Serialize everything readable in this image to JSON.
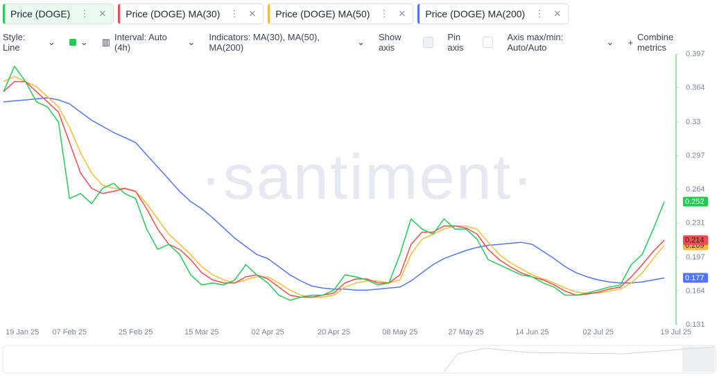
{
  "tabs": [
    "Price (DOGE)",
    "Price (DOGE) MA(30)",
    "Price (DOGE) MA(50)",
    "Price (DOGE) MA(200)"
  ],
  "toolbar": {
    "style": "Style: Line",
    "interval": "Interval: Auto (4h)",
    "indicators": "Indicators: MA(30), MA(50), MA(200)",
    "show_axis": "Show axis",
    "pin_axis": "Pin axis",
    "axis_minmax": "Axis max/min: Auto/Auto",
    "combine": "Combine metrics"
  },
  "watermark": "·santiment·",
  "chart_data": {
    "type": "line",
    "categories": [
      "19 Jan 25",
      null,
      null,
      null,
      null,
      null,
      "07 Feb 25",
      null,
      null,
      null,
      null,
      null,
      "25 Feb 25",
      null,
      null,
      null,
      null,
      null,
      "15 Mar 25",
      null,
      null,
      null,
      null,
      null,
      "02 Apr 25",
      null,
      null,
      null,
      null,
      null,
      "20 Apr 25",
      null,
      null,
      null,
      null,
      null,
      "08 May 25",
      null,
      null,
      null,
      null,
      null,
      "27 May 25",
      null,
      null,
      null,
      null,
      null,
      "14 Jun 25",
      null,
      null,
      null,
      null,
      null,
      "02 Jul 25",
      null,
      null,
      null,
      null,
      null,
      "19 Jul 25"
    ],
    "series": [
      {
        "name": "Price (DOGE)",
        "color": "#26c953",
        "values": [
          0.36,
          0.385,
          0.37,
          0.35,
          0.345,
          0.33,
          0.255,
          0.26,
          0.25,
          0.265,
          0.27,
          0.26,
          0.255,
          0.225,
          0.205,
          0.21,
          0.2,
          0.18,
          0.17,
          0.172,
          0.17,
          0.175,
          0.19,
          0.18,
          0.172,
          0.16,
          0.155,
          0.158,
          0.16,
          0.16,
          0.165,
          0.18,
          0.178,
          0.175,
          0.17,
          0.172,
          0.2,
          0.235,
          0.225,
          0.22,
          0.235,
          0.225,
          0.225,
          0.215,
          0.195,
          0.19,
          0.185,
          0.18,
          0.178,
          0.172,
          0.168,
          0.16,
          0.16,
          0.162,
          0.165,
          0.168,
          0.17,
          0.19,
          0.2,
          0.225,
          0.252
        ]
      },
      {
        "name": "Price (DOGE) MA(30)",
        "color": "#f24c4c",
        "values": [
          0.36,
          0.37,
          0.37,
          0.36,
          0.35,
          0.34,
          0.31,
          0.28,
          0.265,
          0.26,
          0.262,
          0.265,
          0.262,
          0.245,
          0.225,
          0.21,
          0.205,
          0.195,
          0.182,
          0.175,
          0.172,
          0.172,
          0.178,
          0.18,
          0.176,
          0.168,
          0.16,
          0.158,
          0.158,
          0.16,
          0.162,
          0.172,
          0.176,
          0.176,
          0.172,
          0.172,
          0.18,
          0.21,
          0.222,
          0.222,
          0.228,
          0.228,
          0.226,
          0.22,
          0.205,
          0.195,
          0.188,
          0.182,
          0.178,
          0.175,
          0.17,
          0.164,
          0.16,
          0.161,
          0.163,
          0.166,
          0.168,
          0.178,
          0.19,
          0.203,
          0.214
        ]
      },
      {
        "name": "Price (DOGE) MA(50)",
        "color": "#f9bc3a",
        "values": [
          0.37,
          0.375,
          0.37,
          0.365,
          0.355,
          0.345,
          0.325,
          0.3,
          0.28,
          0.268,
          0.265,
          0.265,
          0.262,
          0.25,
          0.235,
          0.22,
          0.21,
          0.2,
          0.188,
          0.18,
          0.175,
          0.172,
          0.175,
          0.178,
          0.178,
          0.172,
          0.165,
          0.16,
          0.158,
          0.158,
          0.16,
          0.168,
          0.172,
          0.174,
          0.174,
          0.172,
          0.175,
          0.2,
          0.215,
          0.22,
          0.225,
          0.228,
          0.228,
          0.225,
          0.212,
          0.2,
          0.192,
          0.186,
          0.18,
          0.176,
          0.172,
          0.167,
          0.163,
          0.162,
          0.162,
          0.164,
          0.166,
          0.172,
          0.182,
          0.196,
          0.209
        ]
      },
      {
        "name": "Price (DOGE) MA(200)",
        "color": "#5275ff",
        "values": [
          0.35,
          0.351,
          0.352,
          0.353,
          0.354,
          0.352,
          0.348,
          0.34,
          0.332,
          0.326,
          0.32,
          0.315,
          0.31,
          0.298,
          0.286,
          0.274,
          0.262,
          0.252,
          0.245,
          0.236,
          0.226,
          0.216,
          0.208,
          0.2,
          0.196,
          0.188,
          0.18,
          0.174,
          0.169,
          0.167,
          0.166,
          0.166,
          0.165,
          0.165,
          0.166,
          0.167,
          0.168,
          0.174,
          0.182,
          0.19,
          0.196,
          0.2,
          0.204,
          0.207,
          0.209,
          0.21,
          0.211,
          0.212,
          0.21,
          0.203,
          0.196,
          0.188,
          0.182,
          0.178,
          0.175,
          0.173,
          0.172,
          0.172,
          0.173,
          0.175,
          0.177
        ]
      }
    ],
    "ylim": [
      0.131,
      0.397
    ],
    "yticks": [
      0.131,
      0.164,
      0.197,
      0.231,
      0.264,
      0.297,
      0.33,
      0.364,
      0.397
    ],
    "grid": false
  }
}
